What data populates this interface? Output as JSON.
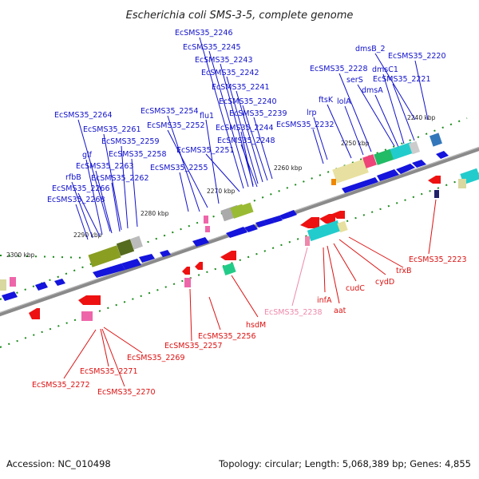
{
  "title": "Escherichia coli SMS-3-5, complete genome",
  "footer": {
    "accession": "Accession: NC_010498",
    "topology": "Topology: circular; Length: 5,068,389 bp; Genes: 4,855"
  },
  "colors": {
    "forward_gene": "#1414dc",
    "reverse_gene": "#ee1111",
    "pseudo_gene": "#ee88aa",
    "backbone": "#808080",
    "tick": "#1a8a1a"
  },
  "scale_labels": [
    "2240 kbp",
    "2250 kbp",
    "2260 kbp",
    "2270 kbp",
    "2280 kbp",
    "2290 kbp",
    "2300 kbp"
  ],
  "forward_labels": [
    "EcSMS35_2246",
    "EcSMS35_2245",
    "EcSMS35_2243",
    "EcSMS35_2242",
    "EcSMS35_2241",
    "EcSMS35_2240",
    "EcSMS35_2239",
    "EcSMS35_2244",
    "EcSMS35_2248",
    "EcSMS35_2251",
    "EcSMS35_2254",
    "flu1",
    "EcSMS35_2252",
    "EcSMS35_2255",
    "EcSMS35_2264",
    "EcSMS35_2261",
    "EcSMS35_2259",
    "glf",
    "EcSMS35_2258",
    "EcSMS35_2263",
    "rfbB",
    "EcSMS35_2262",
    "EcSMS35_2266",
    "EcSMS35_2268",
    "dmsB_2",
    "EcSMS35_2220",
    "dmsC1",
    "EcSMS35_2228",
    "serS",
    "EcSMS35_2221",
    "dmsA",
    "lolA",
    "ftsK",
    "lrp",
    "EcSMS35_2232"
  ],
  "reverse_labels": [
    "EcSMS35_2223",
    "trxB",
    "cydD",
    "cudC",
    "infA",
    "aat",
    "hsdM",
    "EcSMS35_2256",
    "EcSMS35_2257",
    "EcSMS35_2269",
    "EcSMS35_2271",
    "EcSMS35_2272",
    "EcSMS35_2270"
  ],
  "pseudo_labels": [
    "EcSMS35_2238"
  ]
}
